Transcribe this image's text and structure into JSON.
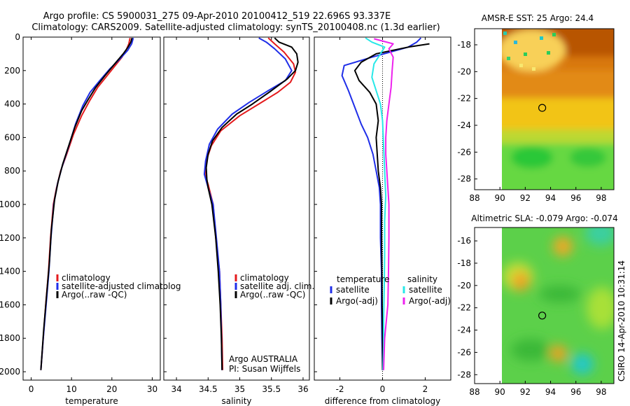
{
  "header": {
    "line1": "Argo profile: CS 5900031_275 09-Apr-2010 20100412_519 22.696S 93.337E",
    "line2": "Climatology: CARS2009. Satellite-adjusted climatology: synTS_20100408.nc (1.3d earlier)"
  },
  "credit": "CSIRO 14-Apr-2010 10:31:14",
  "colors": {
    "climatology": "#e41a1c",
    "satellite": "#1f2ee8",
    "argo": "#000000",
    "sat_salinity": "#27e8e8",
    "argo_salinity": "#ee22ee"
  },
  "chart_data": [
    {
      "type": "line",
      "xlabel": "temperature",
      "xlim": [
        -2,
        32
      ],
      "ylim": [
        0,
        2050
      ],
      "xticks": [
        "0",
        "10",
        "20",
        "30"
      ],
      "yticks": [
        "0",
        "200",
        "400",
        "600",
        "800",
        "1000",
        "1200",
        "1400",
        "1600",
        "1800",
        "2000"
      ],
      "legend": [
        "climatology",
        "satellite-adjusted climatolog",
        "Argo(..raw -QC)"
      ],
      "series": [
        {
          "name": "climatology",
          "color": "#e41a1c",
          "points": [
            [
              24.5,
              5
            ],
            [
              24.2,
              40
            ],
            [
              23.5,
              80
            ],
            [
              22.5,
              120
            ],
            [
              20.5,
              180
            ],
            [
              18.5,
              240
            ],
            [
              16.5,
              300
            ],
            [
              14.5,
              380
            ],
            [
              12.5,
              470
            ],
            [
              10.5,
              580
            ],
            [
              8.8,
              700
            ],
            [
              7.3,
              800
            ],
            [
              6.3,
              900
            ],
            [
              5.5,
              1000
            ],
            [
              4.8,
              1200
            ],
            [
              4.3,
              1400
            ],
            [
              3.6,
              1600
            ],
            [
              3.0,
              1800
            ],
            [
              2.4,
              1990
            ]
          ]
        },
        {
          "name": "satellite-adjusted climatolog",
          "color": "#1f2ee8",
          "points": [
            [
              25.3,
              5
            ],
            [
              24.9,
              40
            ],
            [
              23.9,
              80
            ],
            [
              22.0,
              130
            ],
            [
              19.5,
              190
            ],
            [
              17.0,
              260
            ],
            [
              14.6,
              330
            ],
            [
              12.8,
              410
            ],
            [
              11.0,
              520
            ],
            [
              9.2,
              660
            ],
            [
              7.6,
              780
            ],
            [
              6.5,
              880
            ],
            [
              5.6,
              1000
            ],
            [
              4.9,
              1200
            ],
            [
              4.4,
              1400
            ],
            [
              3.7,
              1600
            ],
            [
              3.0,
              1800
            ],
            [
              2.4,
              1990
            ]
          ]
        },
        {
          "name": "Argo(..raw -QC)",
          "color": "#000000",
          "points": [
            [
              25.0,
              5
            ],
            [
              24.7,
              30
            ],
            [
              24.0,
              60
            ],
            [
              22.8,
              100
            ],
            [
              20.7,
              160
            ],
            [
              18.3,
              230
            ],
            [
              16.0,
              300
            ],
            [
              14.2,
              370
            ],
            [
              12.5,
              440
            ],
            [
              10.8,
              540
            ],
            [
              9.3,
              650
            ],
            [
              7.8,
              760
            ],
            [
              6.7,
              860
            ],
            [
              5.8,
              970
            ],
            [
              5.0,
              1150
            ],
            [
              4.5,
              1350
            ],
            [
              3.8,
              1550
            ],
            [
              3.1,
              1750
            ],
            [
              2.4,
              1990
            ]
          ]
        }
      ]
    },
    {
      "type": "line",
      "xlabel": "salinity",
      "xlim": [
        33.8,
        36.1
      ],
      "ylim": [
        0,
        2050
      ],
      "xticks": [
        "34",
        "34.5",
        "35",
        "35.5",
        "36"
      ],
      "annotation": [
        "Argo AUSTRALIA",
        "PI: Susan Wijffels"
      ],
      "legend": [
        "climatology",
        "satellite adj. clim.",
        "Argo(..raw -QC)"
      ],
      "series": [
        {
          "name": "climatology",
          "color": "#e41a1c",
          "points": [
            [
              35.45,
              5
            ],
            [
              35.55,
              40
            ],
            [
              35.7,
              90
            ],
            [
              35.85,
              160
            ],
            [
              35.88,
              210
            ],
            [
              35.8,
              270
            ],
            [
              35.6,
              330
            ],
            [
              35.3,
              400
            ],
            [
              35.0,
              470
            ],
            [
              34.7,
              560
            ],
            [
              34.55,
              650
            ],
            [
              34.47,
              740
            ],
            [
              34.45,
              820
            ],
            [
              34.5,
              880
            ],
            [
              34.58,
              1000
            ],
            [
              34.62,
              1200
            ],
            [
              34.68,
              1400
            ],
            [
              34.7,
              1600
            ],
            [
              34.72,
              1800
            ],
            [
              34.73,
              1990
            ]
          ]
        },
        {
          "name": "satellite adj. clim.",
          "color": "#1f2ee8",
          "points": [
            [
              35.3,
              5
            ],
            [
              35.42,
              30
            ],
            [
              35.55,
              70
            ],
            [
              35.72,
              130
            ],
            [
              35.82,
              200
            ],
            [
              35.72,
              260
            ],
            [
              35.45,
              320
            ],
            [
              35.15,
              390
            ],
            [
              34.88,
              460
            ],
            [
              34.65,
              550
            ],
            [
              34.52,
              640
            ],
            [
              34.46,
              740
            ],
            [
              34.44,
              820
            ],
            [
              34.5,
              900
            ],
            [
              34.58,
              1000
            ],
            [
              34.63,
              1200
            ],
            [
              34.68,
              1400
            ],
            [
              34.7,
              1600
            ],
            [
              34.71,
              1800
            ],
            [
              34.72,
              1990
            ]
          ]
        },
        {
          "name": "Argo(..raw -QC)",
          "color": "#000000",
          "points": [
            [
              35.55,
              5
            ],
            [
              35.62,
              30
            ],
            [
              35.82,
              60
            ],
            [
              35.9,
              100
            ],
            [
              35.92,
              150
            ],
            [
              35.88,
              200
            ],
            [
              35.75,
              250
            ],
            [
              35.5,
              320
            ],
            [
              35.2,
              400
            ],
            [
              34.95,
              460
            ],
            [
              34.72,
              540
            ],
            [
              34.57,
              620
            ],
            [
              34.5,
              700
            ],
            [
              34.47,
              780
            ],
            [
              34.48,
              850
            ],
            [
              34.5,
              900
            ],
            [
              34.56,
              1000
            ],
            [
              34.62,
              1200
            ],
            [
              34.66,
              1400
            ],
            [
              34.69,
              1600
            ],
            [
              34.71,
              1800
            ],
            [
              34.72,
              1990
            ]
          ]
        }
      ]
    },
    {
      "type": "line",
      "xlabel": "difference from climatology",
      "xlim": [
        -3.2,
        3.2
      ],
      "ylim": [
        0,
        2050
      ],
      "xticks": [
        "-2",
        "0",
        "2"
      ],
      "legend_titles": [
        "temperature",
        "salinity"
      ],
      "legend": [
        "satellite",
        "Argo(-adj)",
        "satellite",
        "Argo(-adj)"
      ],
      "series": [
        {
          "name": "satellite",
          "color": "#1f2ee8",
          "points": [
            [
              1.8,
              5
            ],
            [
              1.6,
              30
            ],
            [
              1.2,
              60
            ],
            [
              -0.5,
              120
            ],
            [
              -1.8,
              170
            ],
            [
              -1.9,
              230
            ],
            [
              -1.6,
              320
            ],
            [
              -1.3,
              420
            ],
            [
              -1.0,
              520
            ],
            [
              -0.7,
              600
            ],
            [
              -0.45,
              700
            ],
            [
              -0.3,
              800
            ],
            [
              -0.15,
              900
            ],
            [
              -0.1,
              1000
            ],
            [
              -0.1,
              1200
            ],
            [
              -0.05,
              1400
            ],
            [
              -0.05,
              1600
            ],
            [
              -0.03,
              1800
            ],
            [
              0,
              1990
            ]
          ]
        },
        {
          "name": "Argo(-adj)",
          "color": "#000000",
          "points": [
            [
              2.2,
              40
            ],
            [
              1.2,
              60
            ],
            [
              -0.3,
              100
            ],
            [
              -1.0,
              150
            ],
            [
              -1.3,
              200
            ],
            [
              -1.1,
              260
            ],
            [
              -0.6,
              330
            ],
            [
              -0.3,
              400
            ],
            [
              -0.2,
              500
            ],
            [
              -0.3,
              600
            ],
            [
              -0.25,
              700
            ],
            [
              -0.2,
              800
            ],
            [
              -0.1,
              900
            ],
            [
              -0.05,
              1000
            ],
            [
              -0.05,
              1200
            ],
            [
              -0.03,
              1400
            ],
            [
              -0.02,
              1600
            ],
            [
              0,
              1800
            ],
            [
              0,
              1990
            ]
          ]
        },
        {
          "name": "satellite",
          "color": "#27e8e8",
          "points": [
            [
              -0.8,
              5
            ],
            [
              -0.5,
              30
            ],
            [
              0.1,
              60
            ],
            [
              -0.1,
              100
            ],
            [
              -0.4,
              160
            ],
            [
              -0.5,
              240
            ],
            [
              -0.3,
              320
            ],
            [
              -0.1,
              400
            ],
            [
              0,
              500
            ],
            [
              0.05,
              650
            ],
            [
              0.1,
              800
            ],
            [
              0.15,
              950
            ],
            [
              0.1,
              1100
            ],
            [
              0.1,
              1300
            ],
            [
              0.08,
              1500
            ],
            [
              0.05,
              1700
            ],
            [
              0.05,
              1850
            ],
            [
              0.02,
              1990
            ]
          ]
        },
        {
          "name": "Argo(-adj)",
          "color": "#ee22ee",
          "points": [
            [
              -0.4,
              10
            ],
            [
              0.5,
              40
            ],
            [
              0.3,
              70
            ],
            [
              0.5,
              120
            ],
            [
              0.45,
              200
            ],
            [
              0.4,
              300
            ],
            [
              0.3,
              400
            ],
            [
              0.2,
              500
            ],
            [
              0.15,
              600
            ],
            [
              0.15,
              700
            ],
            [
              0.2,
              800
            ],
            [
              0.25,
              900
            ],
            [
              0.3,
              1000
            ],
            [
              0.3,
              1200
            ],
            [
              0.28,
              1400
            ],
            [
              0.25,
              1600
            ],
            [
              0.1,
              1800
            ],
            [
              0.05,
              1990
            ]
          ]
        }
      ]
    },
    {
      "type": "heatmap",
      "title": "AMSR-E SST: 25 Argo: 24.4",
      "xlim": [
        88,
        99
      ],
      "ylim": [
        -28.8,
        -16.8
      ],
      "xticks": [
        "88",
        "90",
        "92",
        "94",
        "96",
        "98"
      ],
      "yticks": [
        "-18",
        "-20",
        "-22",
        "-24",
        "-26",
        "-28"
      ],
      "data_extent_x": [
        90,
        99
      ],
      "marker": [
        93.34,
        -22.7
      ]
    },
    {
      "type": "heatmap",
      "title": "Altimetric SLA: -0.079 Argo: -0.074",
      "xlim": [
        88,
        99
      ],
      "ylim": [
        -28.8,
        -14.8
      ],
      "xticks": [
        "88",
        "90",
        "92",
        "94",
        "96",
        "98"
      ],
      "yticks": [
        "-16",
        "-18",
        "-20",
        "-22",
        "-24",
        "-26",
        "-28"
      ],
      "data_extent_x": [
        90,
        99
      ],
      "marker": [
        93.34,
        -22.7
      ]
    }
  ]
}
